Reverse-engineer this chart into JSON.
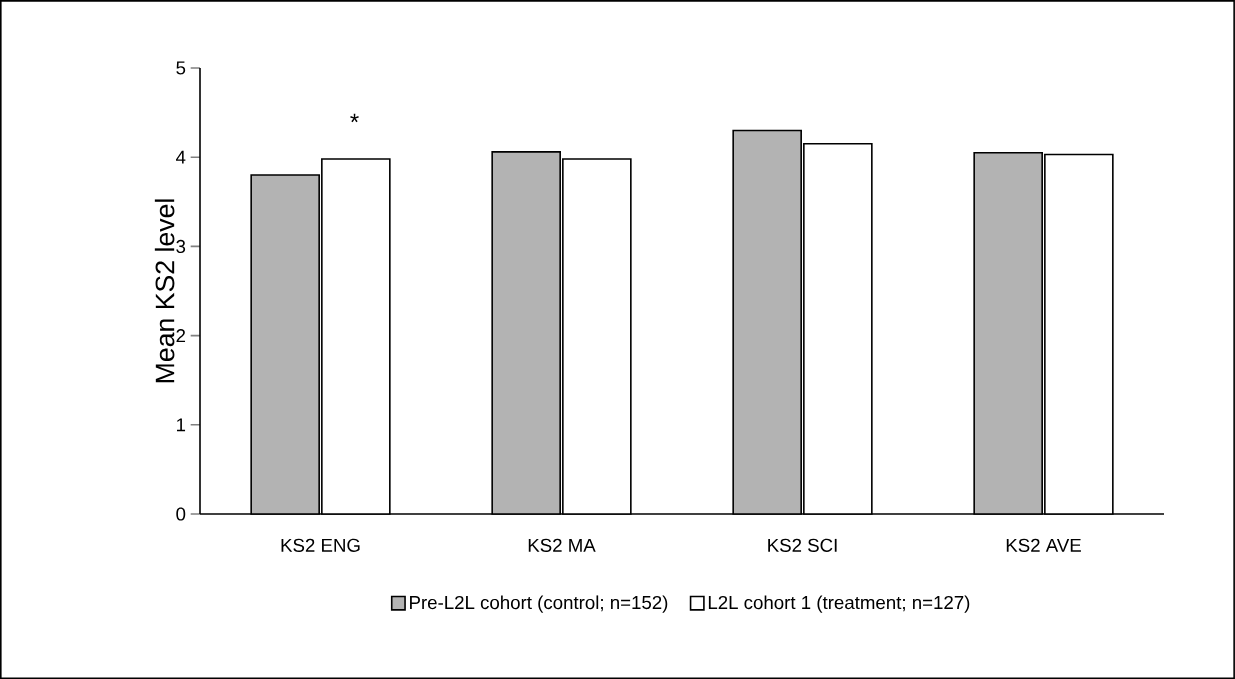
{
  "chart_data": {
    "type": "bar",
    "ylabel": "Mean KS2 level",
    "categories": [
      "KS2 ENG",
      "KS2 MA",
      "KS2 SCI",
      "KS2 AVE"
    ],
    "series": [
      {
        "name": "Pre-L2L cohort (control; n=152)",
        "color": "#b3b3b3",
        "values": [
          3.8,
          4.06,
          4.3,
          4.05
        ]
      },
      {
        "name": "L2L cohort 1 (treatment; n=127)",
        "color": "#ffffff",
        "values": [
          3.98,
          3.98,
          4.15,
          4.03
        ]
      }
    ],
    "ylim": [
      0,
      5
    ],
    "yticks": [
      0,
      1,
      2,
      3,
      4,
      5
    ],
    "annotations": [
      "*"
    ],
    "grid": false,
    "legend": "bottom"
  }
}
